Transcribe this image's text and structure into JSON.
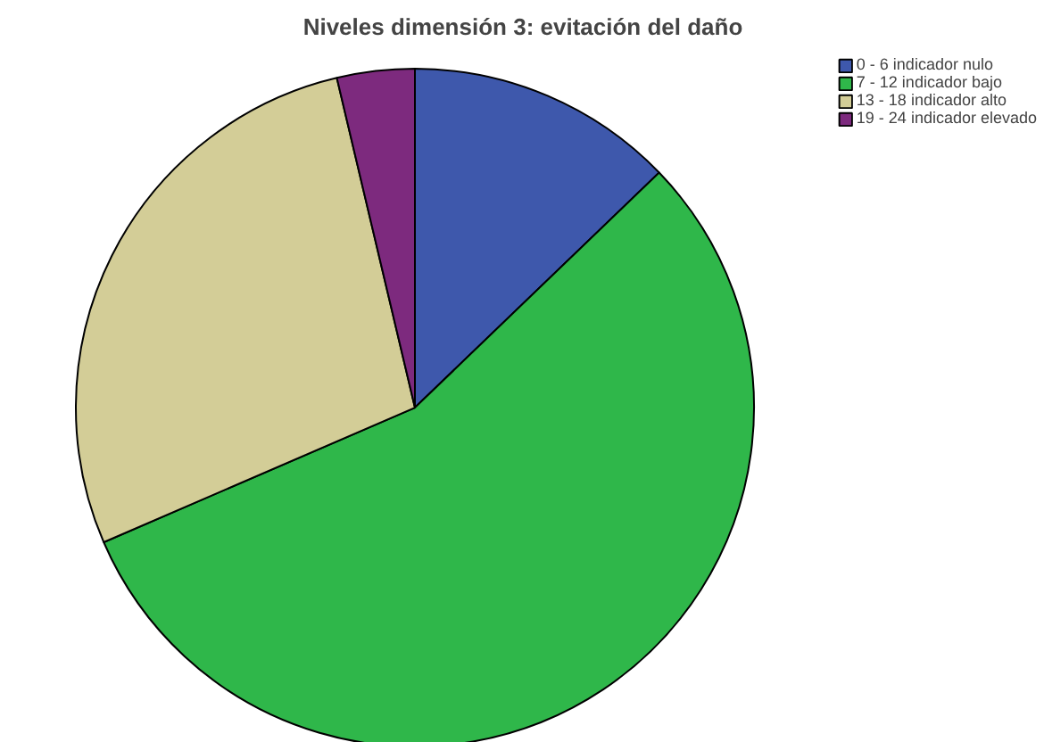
{
  "chart_data": {
    "type": "pie",
    "title": "Niveles dimensión 3: evitación del daño",
    "categories": [
      "0 - 6 indicador nulo",
      "7 - 12 indicador bajo",
      "13 - 18 indicador alto",
      "19 - 24 indicador elevado"
    ],
    "values": [
      12.8,
      55.7,
      27.8,
      3.7
    ],
    "colors": [
      "#3e58ac",
      "#2fb74a",
      "#d3cd97",
      "#7d2a7e"
    ],
    "legend": "top right"
  }
}
